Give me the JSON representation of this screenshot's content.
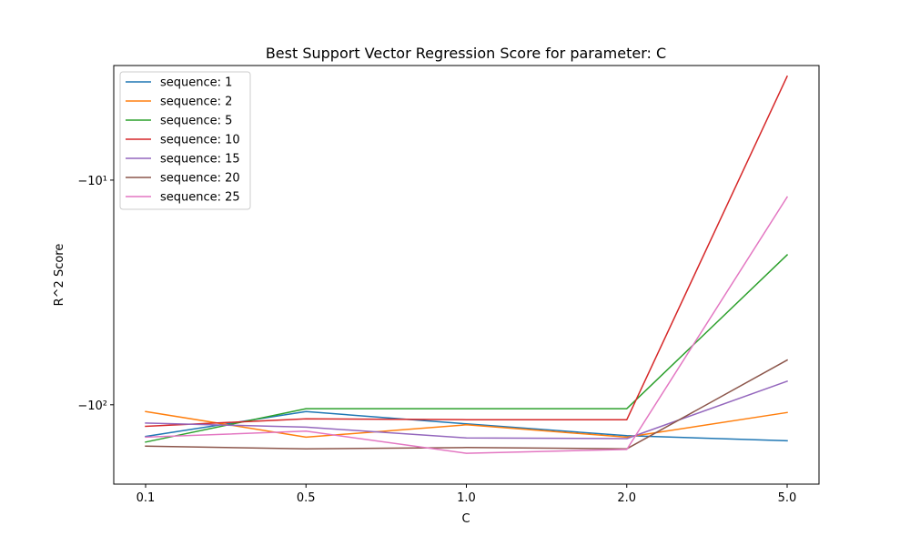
{
  "chart_data": {
    "type": "line",
    "title": "Best Support Vector Regression Score for parameter: C",
    "xlabel": "C",
    "ylabel": "R^2 Score",
    "x_scale": "categorical",
    "y_scale": "symlog",
    "categories": [
      "0.1",
      "0.5",
      "1.0",
      "2.0",
      "5.0"
    ],
    "y_ticks": [
      {
        "value": -10,
        "label": "−10¹"
      },
      {
        "value": -100,
        "label": "−10²"
      }
    ],
    "ylim": [
      -220,
      -2.55
    ],
    "legend_position": "upper left",
    "grid": false,
    "series": [
      {
        "name": "sequence: 1",
        "color": "#1f77b4",
        "values": [
          -137,
          -107,
          -121,
          -136,
          -143
        ]
      },
      {
        "name": "sequence: 2",
        "color": "#ff7f0e",
        "values": [
          -107,
          -138,
          -122,
          -138,
          -108
        ]
      },
      {
        "name": "sequence: 5",
        "color": "#2ca02c",
        "values": [
          -145,
          -104,
          -104,
          -104,
          -22
        ]
      },
      {
        "name": "sequence: 10",
        "color": "#d62728",
        "values": [
          -124,
          -115,
          -116,
          -116,
          -2.95
        ]
      },
      {
        "name": "sequence: 15",
        "color": "#9467bd",
        "values": [
          -120,
          -125,
          -139,
          -140,
          -79
        ]
      },
      {
        "name": "sequence: 20",
        "color": "#8c564b",
        "values": [
          -151,
          -155,
          -153,
          -155,
          -64
        ]
      },
      {
        "name": "sequence: 25",
        "color": "#e377c2",
        "values": [
          -138,
          -130,
          -162,
          -156,
          -12
        ]
      }
    ]
  }
}
